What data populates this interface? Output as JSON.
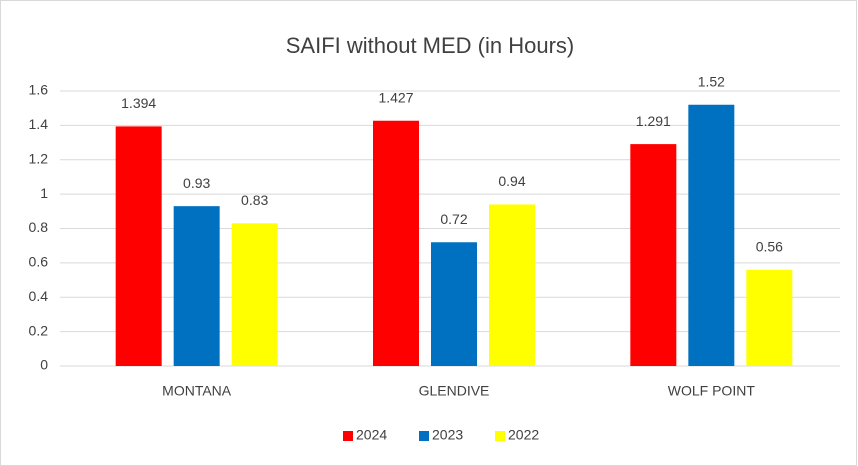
{
  "chart_data": {
    "type": "bar",
    "title": "SAIFI without MED (in Hours)",
    "categories": [
      "MONTANA",
      "GLENDIVE",
      "WOLF POINT"
    ],
    "series": [
      {
        "name": "2024",
        "color": "#ff0000",
        "values": [
          1.394,
          1.427,
          1.291
        ]
      },
      {
        "name": "2023",
        "color": "#0070c0",
        "values": [
          0.93,
          0.72,
          1.52
        ]
      },
      {
        "name": "2022",
        "color": "#ffff00",
        "values": [
          0.83,
          0.94,
          0.56
        ]
      }
    ],
    "ylim": [
      0,
      1.6
    ],
    "yticks": [
      0,
      0.2,
      0.4,
      0.6,
      0.8,
      1,
      1.2,
      1.4,
      1.6
    ],
    "grid": true,
    "legend": "bottom"
  }
}
